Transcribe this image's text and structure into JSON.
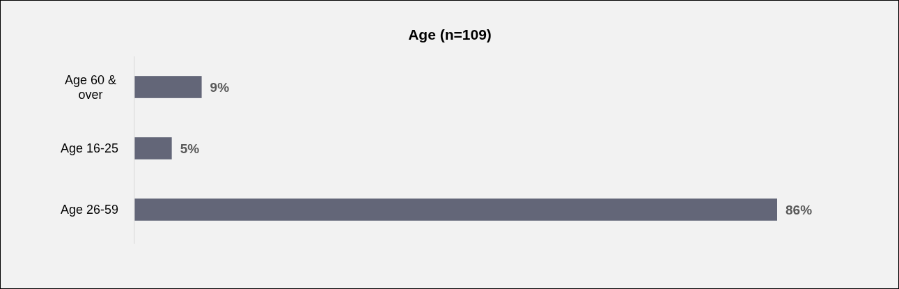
{
  "chart_data": {
    "type": "bar",
    "orientation": "horizontal",
    "title": "Age (n=109)",
    "categories": [
      "Age 60 & over",
      "Age 16-25",
      "Age 26-59"
    ],
    "values": [
      9,
      5,
      86
    ],
    "color": "#636678",
    "value_labels": [
      "9%",
      "5%",
      "86%"
    ]
  }
}
